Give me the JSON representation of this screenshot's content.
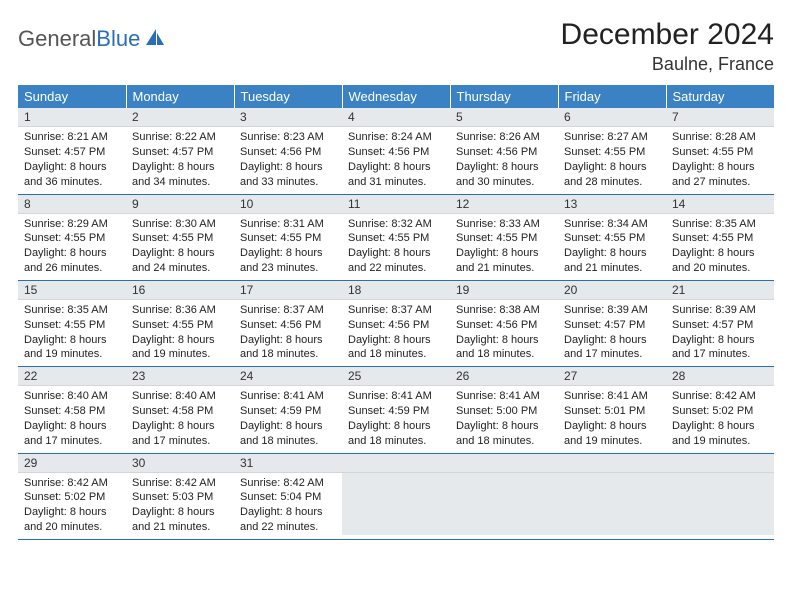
{
  "logo": {
    "word1": "General",
    "word2": "Blue"
  },
  "title": "December 2024",
  "location": "Baulne, France",
  "colors": {
    "header_bg": "#3a82c4",
    "border": "#2a6db8",
    "daynum_bg": "#e5e9ec",
    "text": "#222222",
    "logo_gray": "#555555",
    "logo_blue": "#2a6db8"
  },
  "weekdays": [
    "Sunday",
    "Monday",
    "Tuesday",
    "Wednesday",
    "Thursday",
    "Friday",
    "Saturday"
  ],
  "days": [
    {
      "n": 1,
      "sr": "8:21 AM",
      "ss": "4:57 PM",
      "dl": "8 hours and 36 minutes."
    },
    {
      "n": 2,
      "sr": "8:22 AM",
      "ss": "4:57 PM",
      "dl": "8 hours and 34 minutes."
    },
    {
      "n": 3,
      "sr": "8:23 AM",
      "ss": "4:56 PM",
      "dl": "8 hours and 33 minutes."
    },
    {
      "n": 4,
      "sr": "8:24 AM",
      "ss": "4:56 PM",
      "dl": "8 hours and 31 minutes."
    },
    {
      "n": 5,
      "sr": "8:26 AM",
      "ss": "4:56 PM",
      "dl": "8 hours and 30 minutes."
    },
    {
      "n": 6,
      "sr": "8:27 AM",
      "ss": "4:55 PM",
      "dl": "8 hours and 28 minutes."
    },
    {
      "n": 7,
      "sr": "8:28 AM",
      "ss": "4:55 PM",
      "dl": "8 hours and 27 minutes."
    },
    {
      "n": 8,
      "sr": "8:29 AM",
      "ss": "4:55 PM",
      "dl": "8 hours and 26 minutes."
    },
    {
      "n": 9,
      "sr": "8:30 AM",
      "ss": "4:55 PM",
      "dl": "8 hours and 24 minutes."
    },
    {
      "n": 10,
      "sr": "8:31 AM",
      "ss": "4:55 PM",
      "dl": "8 hours and 23 minutes."
    },
    {
      "n": 11,
      "sr": "8:32 AM",
      "ss": "4:55 PM",
      "dl": "8 hours and 22 minutes."
    },
    {
      "n": 12,
      "sr": "8:33 AM",
      "ss": "4:55 PM",
      "dl": "8 hours and 21 minutes."
    },
    {
      "n": 13,
      "sr": "8:34 AM",
      "ss": "4:55 PM",
      "dl": "8 hours and 21 minutes."
    },
    {
      "n": 14,
      "sr": "8:35 AM",
      "ss": "4:55 PM",
      "dl": "8 hours and 20 minutes."
    },
    {
      "n": 15,
      "sr": "8:35 AM",
      "ss": "4:55 PM",
      "dl": "8 hours and 19 minutes."
    },
    {
      "n": 16,
      "sr": "8:36 AM",
      "ss": "4:55 PM",
      "dl": "8 hours and 19 minutes."
    },
    {
      "n": 17,
      "sr": "8:37 AM",
      "ss": "4:56 PM",
      "dl": "8 hours and 18 minutes."
    },
    {
      "n": 18,
      "sr": "8:37 AM",
      "ss": "4:56 PM",
      "dl": "8 hours and 18 minutes."
    },
    {
      "n": 19,
      "sr": "8:38 AM",
      "ss": "4:56 PM",
      "dl": "8 hours and 18 minutes."
    },
    {
      "n": 20,
      "sr": "8:39 AM",
      "ss": "4:57 PM",
      "dl": "8 hours and 17 minutes."
    },
    {
      "n": 21,
      "sr": "8:39 AM",
      "ss": "4:57 PM",
      "dl": "8 hours and 17 minutes."
    },
    {
      "n": 22,
      "sr": "8:40 AM",
      "ss": "4:58 PM",
      "dl": "8 hours and 17 minutes."
    },
    {
      "n": 23,
      "sr": "8:40 AM",
      "ss": "4:58 PM",
      "dl": "8 hours and 17 minutes."
    },
    {
      "n": 24,
      "sr": "8:41 AM",
      "ss": "4:59 PM",
      "dl": "8 hours and 18 minutes."
    },
    {
      "n": 25,
      "sr": "8:41 AM",
      "ss": "4:59 PM",
      "dl": "8 hours and 18 minutes."
    },
    {
      "n": 26,
      "sr": "8:41 AM",
      "ss": "5:00 PM",
      "dl": "8 hours and 18 minutes."
    },
    {
      "n": 27,
      "sr": "8:41 AM",
      "ss": "5:01 PM",
      "dl": "8 hours and 19 minutes."
    },
    {
      "n": 28,
      "sr": "8:42 AM",
      "ss": "5:02 PM",
      "dl": "8 hours and 19 minutes."
    },
    {
      "n": 29,
      "sr": "8:42 AM",
      "ss": "5:02 PM",
      "dl": "8 hours and 20 minutes."
    },
    {
      "n": 30,
      "sr": "8:42 AM",
      "ss": "5:03 PM",
      "dl": "8 hours and 21 minutes."
    },
    {
      "n": 31,
      "sr": "8:42 AM",
      "ss": "5:04 PM",
      "dl": "8 hours and 22 minutes."
    }
  ],
  "labels": {
    "sunrise": "Sunrise:",
    "sunset": "Sunset:",
    "daylight": "Daylight:"
  },
  "layout": {
    "start_weekday": 0,
    "total_cells": 35
  }
}
